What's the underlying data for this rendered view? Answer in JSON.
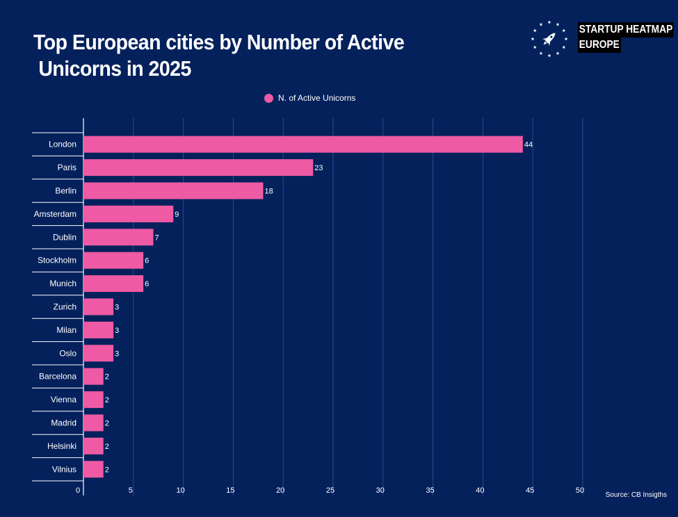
{
  "title_lines": [
    "Top European cities by Number of Active",
    " Unicorns in 2025"
  ],
  "logo": {
    "line1": "STARTUP HEATMAP",
    "line2": "EUROPE",
    "icon": "rocket-in-stars-icon"
  },
  "legend_label": "N. of Active Unicorns",
  "source": "Source: CB Insigths",
  "colors": {
    "background": "#05215c",
    "bar": "#ef5aa4",
    "gridline": "#2a4a86",
    "text": "#ffffff"
  },
  "chart_data": {
    "type": "bar",
    "orientation": "horizontal",
    "categories": [
      "London",
      "Paris",
      "Berlin",
      "Amsterdam",
      "Dublin",
      "Stockholm",
      "Munich",
      "Zurich",
      "Milan",
      "Oslo",
      "Barcelona",
      "Vienna",
      "Madrid",
      "Helsinki",
      "Vilnius"
    ],
    "series": [
      {
        "name": "N. of Active Unicorns",
        "values": [
          44,
          23,
          18,
          9,
          7,
          6,
          6,
          3,
          3,
          3,
          2,
          2,
          2,
          2,
          2
        ]
      }
    ],
    "xlim": [
      0,
      50
    ],
    "xticks": [
      0,
      5,
      10,
      15,
      20,
      25,
      30,
      35,
      40,
      45,
      50
    ],
    "grid": "vertical",
    "legend": "top-center",
    "data_labels": true
  }
}
